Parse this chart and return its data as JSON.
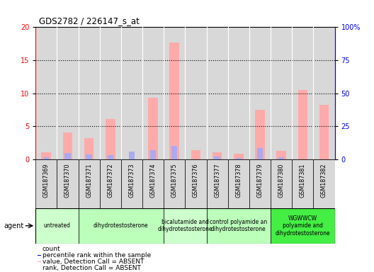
{
  "title": "GDS2782 / 226147_s_at",
  "samples": [
    "GSM187369",
    "GSM187370",
    "GSM187371",
    "GSM187372",
    "GSM187373",
    "GSM187374",
    "GSM187375",
    "GSM187376",
    "GSM187377",
    "GSM187378",
    "GSM187379",
    "GSM187380",
    "GSM187381",
    "GSM187382"
  ],
  "absent_value": [
    1.0,
    4.0,
    3.2,
    6.1,
    null,
    9.3,
    17.7,
    1.4,
    1.0,
    0.8,
    7.5,
    1.3,
    10.5,
    8.2
  ],
  "absent_rank": [
    1.6,
    4.9,
    3.4,
    3.2,
    5.9,
    6.7,
    10.2,
    null,
    2.0,
    0.8,
    8.6,
    1.6,
    null,
    null
  ],
  "ylim_left": [
    0,
    20
  ],
  "ylim_right": [
    0,
    100
  ],
  "yticks_left": [
    0,
    5,
    10,
    15,
    20
  ],
  "yticks_right": [
    0,
    25,
    50,
    75,
    100
  ],
  "ytick_labels_right": [
    "0",
    "25",
    "50",
    "75",
    "100%"
  ],
  "agents": [
    {
      "label": "untreated",
      "start": 0,
      "end": 2,
      "color": "#ccffcc"
    },
    {
      "label": "dihydrotestosterone",
      "start": 2,
      "end": 6,
      "color": "#bbffbb"
    },
    {
      "label": "bicalutamide and\ndihydrotestosterone",
      "start": 6,
      "end": 8,
      "color": "#ccffcc"
    },
    {
      "label": "control polyamide an\ndihydrotestosterone",
      "start": 8,
      "end": 11,
      "color": "#bbffbb"
    },
    {
      "label": "WGWWCW\npolyamide and\ndihydrotestosterone",
      "start": 11,
      "end": 14,
      "color": "#44ee44"
    }
  ],
  "bar_color_absent": "#ffaaaa",
  "bar_color_rank_absent": "#aaaaee",
  "bar_color_count": "#cc0000",
  "bar_color_percentile": "#0000cc",
  "cell_bg": "#d8d8d8",
  "chart_bg": "#ffffff",
  "border_color": "#000000"
}
